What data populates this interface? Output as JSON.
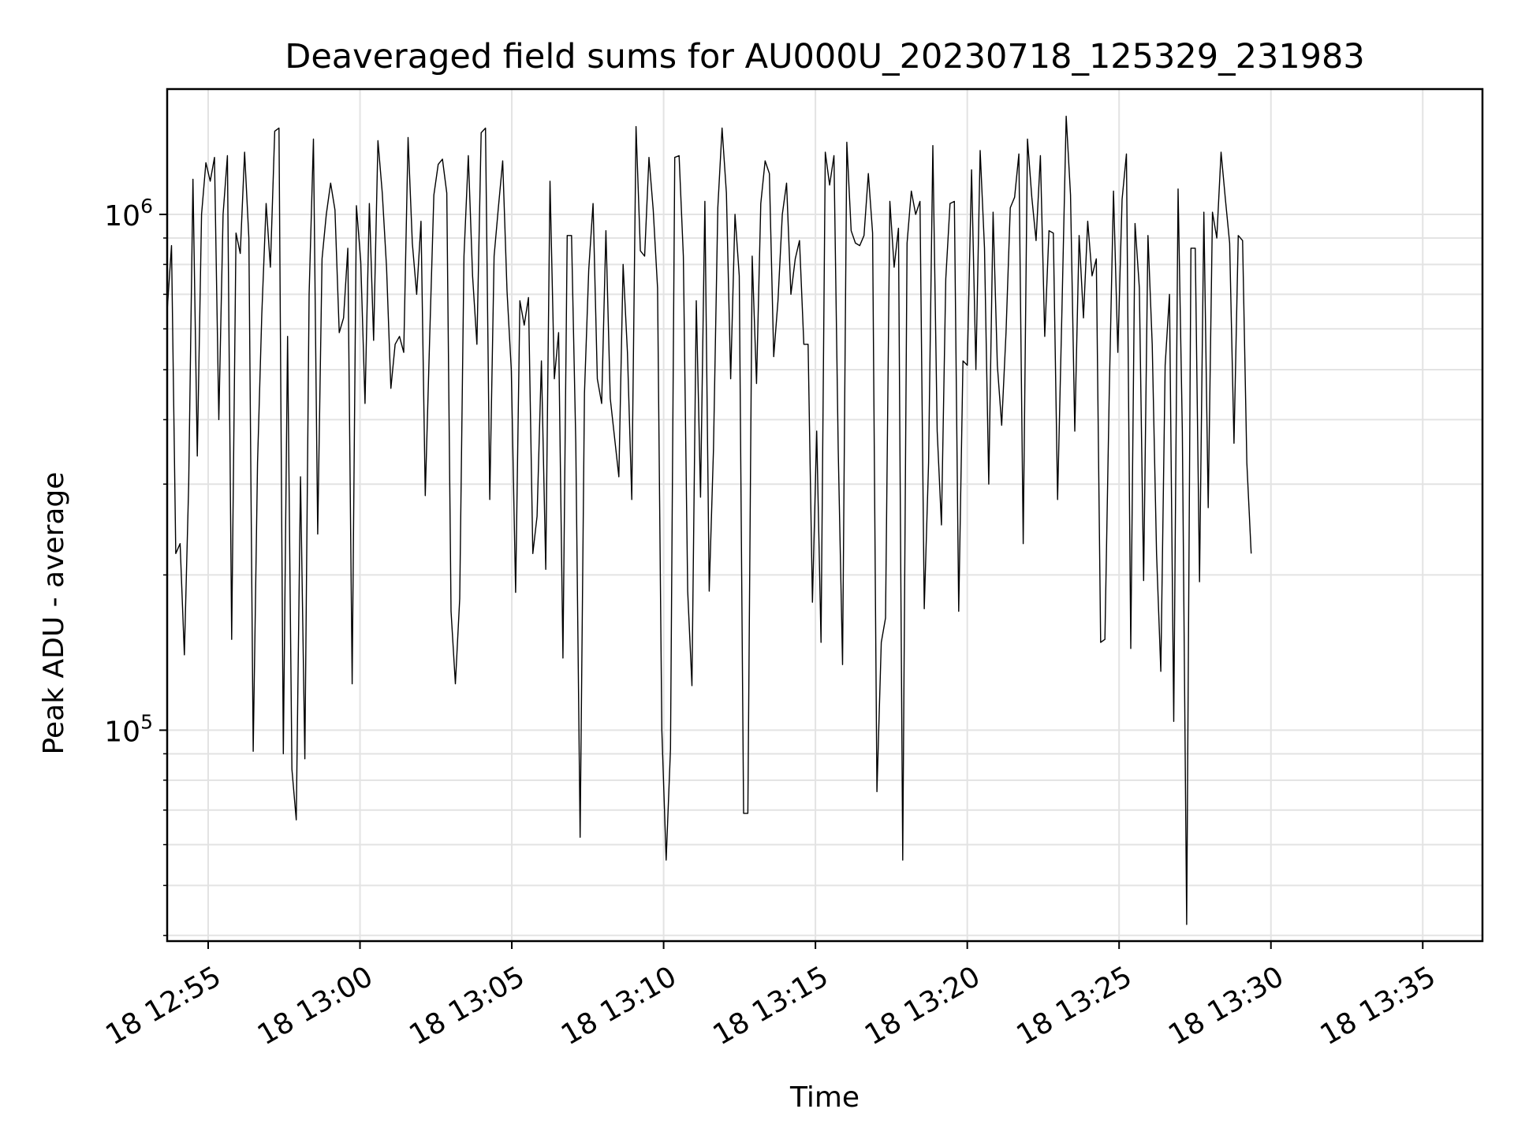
{
  "chart_data": {
    "type": "line",
    "title": "Deaveraged field sums for AU000U_20230718_125329_231983",
    "xlabel": "Time",
    "ylabel": "Peak ADU - average",
    "yscale": "log",
    "ylim": [
      39000,
      1750000
    ],
    "xlim": [
      "2023-07-18 12:53:39",
      "2023-07-18 13:36:58"
    ],
    "grid": true,
    "line_color": "#000000",
    "x_ticks": [
      {
        "label": "18 12:55",
        "time": "2023-07-18 12:55"
      },
      {
        "label": "18 13:00",
        "time": "2023-07-18 13:00"
      },
      {
        "label": "18 13:05",
        "time": "2023-07-18 13:05"
      },
      {
        "label": "18 13:10",
        "time": "2023-07-18 13:10"
      },
      {
        "label": "18 13:15",
        "time": "2023-07-18 13:15"
      },
      {
        "label": "18 13:20",
        "time": "2023-07-18 13:20"
      },
      {
        "label": "18 13:25",
        "time": "2023-07-18 13:25"
      },
      {
        "label": "18 13:30",
        "time": "2023-07-18 13:30"
      },
      {
        "label": "18 13:35",
        "time": "2023-07-18 13:35"
      }
    ],
    "y_ticks": [
      {
        "base": "10",
        "exp": "5",
        "value": 100000
      },
      {
        "base": "10",
        "exp": "6",
        "value": 1000000
      }
    ],
    "y_minor_ticks": [
      40000,
      50000,
      60000,
      70000,
      80000,
      90000,
      200000,
      300000,
      400000,
      500000,
      600000,
      700000,
      800000,
      900000
    ],
    "start_time": "2023-07-18 12:53:39",
    "interval_seconds": 8.5,
    "values": [
      650000,
      870000,
      220000,
      230000,
      140000,
      300000,
      1170000,
      340000,
      1000000,
      1260000,
      1160000,
      1290000,
      400000,
      1000000,
      1300000,
      150000,
      920000,
      840000,
      1320000,
      900000,
      91000,
      330000,
      640000,
      1050000,
      790000,
      1450000,
      1470000,
      90000,
      580000,
      84000,
      67000,
      310000,
      88000,
      700000,
      1400000,
      240000,
      820000,
      1000000,
      1150000,
      1020000,
      590000,
      630000,
      860000,
      123000,
      1040000,
      810000,
      430000,
      1050000,
      570000,
      1390000,
      1100000,
      790000,
      460000,
      560000,
      580000,
      540000,
      1410000,
      880000,
      700000,
      970000,
      285000,
      570000,
      1090000,
      1250000,
      1280000,
      1100000,
      170000,
      123000,
      180000,
      830000,
      1300000,
      760000,
      560000,
      1440000,
      1470000,
      280000,
      830000,
      1030000,
      1270000,
      710000,
      500000,
      185000,
      680000,
      610000,
      690000,
      220000,
      260000,
      520000,
      205000,
      1160000,
      480000,
      590000,
      138000,
      910000,
      910000,
      360000,
      62000,
      450000,
      780000,
      1050000,
      480000,
      430000,
      930000,
      440000,
      370000,
      310000,
      800000,
      540000,
      280000,
      1480000,
      850000,
      830000,
      1290000,
      1020000,
      720000,
      100000,
      56000,
      92000,
      1290000,
      1300000,
      830000,
      186000,
      122000,
      680000,
      283000,
      1060000,
      186000,
      350000,
      1030000,
      1470000,
      1100000,
      480000,
      1000000,
      760000,
      69000,
      69000,
      830000,
      470000,
      1050000,
      1270000,
      1200000,
      530000,
      680000,
      1000000,
      1150000,
      700000,
      820000,
      890000,
      560000,
      560000,
      177000,
      380000,
      148000,
      1320000,
      1140000,
      1300000,
      350000,
      134000,
      1380000,
      930000,
      880000,
      870000,
      910000,
      1200000,
      920000,
      76000,
      148000,
      165000,
      1060000,
      790000,
      940000,
      56000,
      880000,
      1110000,
      1000000,
      1060000,
      172000,
      330000,
      1360000,
      380000,
      250000,
      750000,
      1050000,
      1060000,
      170000,
      520000,
      510000,
      1220000,
      500000,
      1330000,
      860000,
      300000,
      1010000,
      510000,
      390000,
      590000,
      1030000,
      1080000,
      1310000,
      230000,
      1400000,
      1080000,
      890000,
      1300000,
      580000,
      930000,
      920000,
      280000,
      650000,
      1550000,
      1090000,
      380000,
      910000,
      630000,
      970000,
      760000,
      820000,
      148000,
      150000,
      450000,
      1110000,
      540000,
      1070000,
      1310000,
      144000,
      960000,
      720000,
      195000,
      910000,
      560000,
      220000,
      130000,
      510000,
      700000,
      104000,
      1120000,
      380000,
      42000,
      860000,
      860000,
      194000,
      1010000,
      270000,
      1010000,
      900000,
      1320000,
      1070000,
      880000,
      360000,
      910000,
      890000,
      330000,
      220000
    ]
  }
}
